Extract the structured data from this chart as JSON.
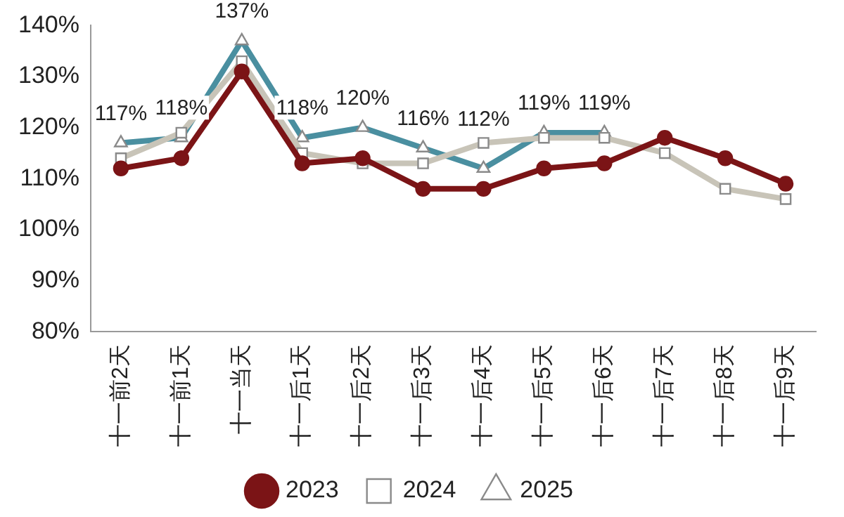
{
  "chart_data": {
    "type": "line",
    "categories": [
      "十一前2天",
      "十一前1天",
      "十一当天",
      "十一后1天",
      "十一后2天",
      "十一后3天",
      "十一后4天",
      "十一后5天",
      "十一后6天",
      "十一后7天",
      "十一后8天",
      "十一后9天"
    ],
    "series": [
      {
        "name": "2023",
        "color": "#7b1416",
        "marker": "circle",
        "values": [
          112,
          114,
          131,
          113,
          114,
          108,
          108,
          112,
          113,
          118,
          114,
          109
        ]
      },
      {
        "name": "2024",
        "color": "#c8c4b8",
        "marker": "square",
        "values": [
          114,
          119,
          133,
          115,
          113,
          113,
          117,
          118,
          118,
          115,
          108,
          106
        ]
      },
      {
        "name": "2025",
        "color": "#4a8fa0",
        "marker": "triangle",
        "values": [
          117,
          118,
          137,
          118,
          120,
          116,
          112,
          119,
          119,
          null,
          null,
          null
        ],
        "value_labels": [
          "117%",
          "118%",
          "137%",
          "118%",
          "120%",
          "116%",
          "112%",
          "119%",
          "119%",
          null,
          null,
          null
        ]
      }
    ],
    "ylim": [
      80,
      140
    ],
    "yticks": [
      {
        "value": 80,
        "label": "80%"
      },
      {
        "value": 90,
        "label": "90%"
      },
      {
        "value": 100,
        "label": "100%"
      },
      {
        "value": 110,
        "label": "110%"
      },
      {
        "value": 120,
        "label": "120%"
      },
      {
        "value": 130,
        "label": "130%"
      },
      {
        "value": 140,
        "label": "140%"
      }
    ],
    "grid": false,
    "legend": "bottom",
    "line_style": "solid"
  }
}
